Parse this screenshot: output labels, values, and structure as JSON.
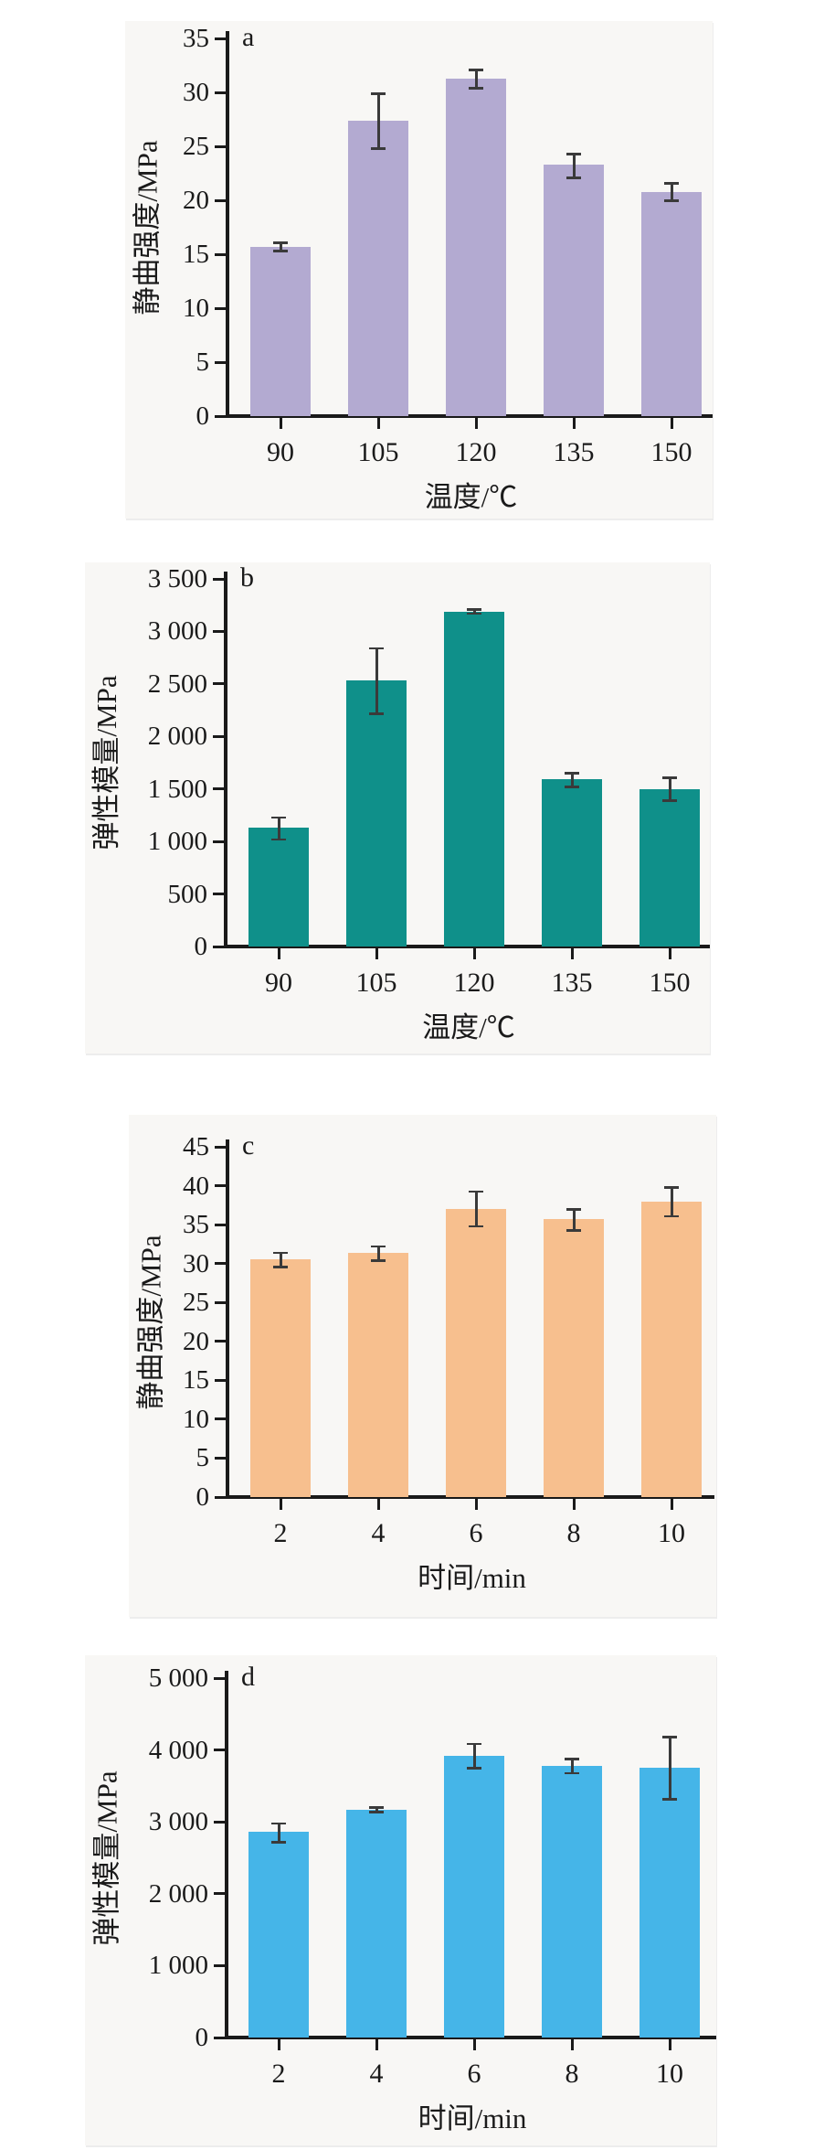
{
  "figure": {
    "description": "Four vertical bar charts labelled a, b, c, d with error bars",
    "panel_letters": [
      "a",
      "b",
      "c",
      "d"
    ]
  },
  "colors": {
    "page_background": "#ffffff",
    "panel_background": "#f8f7f5",
    "axis": "#1a1a1a",
    "text": "#1a1a1a",
    "error_bar": "#3a3a3a",
    "bar_purple": "#b3aad1",
    "bar_teal": "#0f908a",
    "bar_orange": "#f7bf8e",
    "bar_blue": "#45b5e8"
  },
  "chart_data": [
    {
      "type": "bar",
      "panel_label": "a",
      "ylabel": "静曲强度/MPa",
      "xlabel": "温度/℃",
      "categories": [
        "90",
        "105",
        "120",
        "135",
        "150"
      ],
      "values": [
        15.7,
        27.4,
        31.3,
        23.3,
        20.8
      ],
      "err_low": [
        15.3,
        24.8,
        30.4,
        22.1,
        20.0
      ],
      "err_high": [
        16.1,
        29.9,
        32.1,
        24.3,
        21.6
      ],
      "ylim": [
        0,
        35
      ],
      "ytick_labels": [
        "35",
        "30",
        "25",
        "20",
        "15",
        "10",
        "5",
        "0"
      ],
      "grid": false,
      "legend": null,
      "bar_color": "#b3aad1"
    },
    {
      "type": "bar",
      "panel_label": "b",
      "ylabel": "弹性模量/MPa",
      "xlabel": "温度/℃",
      "categories": [
        "90",
        "105",
        "120",
        "135",
        "150"
      ],
      "values": [
        1130,
        2530,
        3190,
        1590,
        1500
      ],
      "err_low": [
        1020,
        2220,
        3170,
        1520,
        1390
      ],
      "err_high": [
        1230,
        2840,
        3210,
        1650,
        1610
      ],
      "ylim": [
        0,
        3500
      ],
      "ytick_labels": [
        "3 500",
        "3 000",
        "2 500",
        "2 000",
        "1 500",
        "1 000",
        "500",
        "0"
      ],
      "grid": false,
      "legend": null,
      "bar_color": "#0f908a"
    },
    {
      "type": "bar",
      "panel_label": "c",
      "ylabel": "静曲强度/MPa",
      "xlabel": "时间/min",
      "categories": [
        "2",
        "4",
        "6",
        "8",
        "10"
      ],
      "values": [
        30.5,
        31.4,
        37.0,
        35.7,
        38.0
      ],
      "err_low": [
        29.6,
        30.4,
        34.8,
        34.3,
        36.1
      ],
      "err_high": [
        31.4,
        32.2,
        39.3,
        37.0,
        39.8
      ],
      "ylim": [
        0,
        45
      ],
      "ytick_labels": [
        "45",
        "40",
        "35",
        "30",
        "25",
        "20",
        "15",
        "10",
        "5",
        "0"
      ],
      "grid": false,
      "legend": null,
      "bar_color": "#f7bf8e"
    },
    {
      "type": "bar",
      "panel_label": "d",
      "ylabel": "弹性模量/MPa",
      "xlabel": "时间/min",
      "categories": [
        "2",
        "4",
        "6",
        "8",
        "10"
      ],
      "values": [
        2860,
        3170,
        3920,
        3780,
        3750
      ],
      "err_low": [
        2720,
        3140,
        3750,
        3680,
        3320
      ],
      "err_high": [
        2980,
        3200,
        4090,
        3880,
        4180
      ],
      "ylim": [
        0,
        5000
      ],
      "ytick_labels": [
        "5 000",
        "4 000",
        "3 000",
        "2 000",
        "1 000",
        "0"
      ],
      "grid": false,
      "legend": null,
      "bar_color": "#45b5e8"
    }
  ]
}
